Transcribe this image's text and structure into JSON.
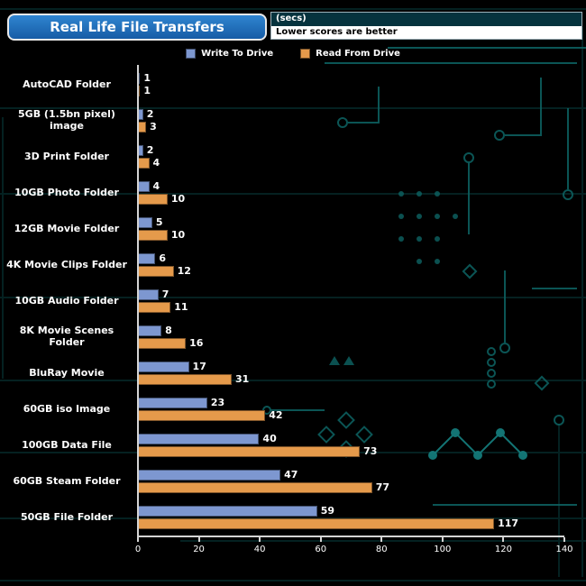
{
  "header": {
    "title": "Real Life File Transfers",
    "units_label": "(secs)",
    "note": "Lower scores are better"
  },
  "chart_data": {
    "type": "bar",
    "orientation": "horizontal",
    "title": "Real Life File Transfers",
    "units": "secs",
    "note": "Lower scores are better",
    "categories": [
      "AutoCAD Folder",
      "5GB (1.5bn pixel) image",
      "3D Print Folder",
      "10GB Photo Folder",
      "12GB Movie Folder",
      "4K Movie Clips Folder",
      "10GB Audio Folder",
      "8K Movie Scenes Folder",
      "BluRay Movie",
      "60GB iso Image",
      "100GB Data File",
      "60GB Steam Folder",
      "50GB File Folder"
    ],
    "series": [
      {
        "name": "Write To  Drive",
        "color": "#7d97d0",
        "values": [
          1,
          2,
          2,
          4,
          5,
          6,
          7,
          8,
          17,
          23,
          40,
          47,
          59
        ]
      },
      {
        "name": "Read From  Drive",
        "color": "#e59a4b",
        "values": [
          1,
          3,
          4,
          10,
          10,
          12,
          11,
          16,
          31,
          42,
          73,
          77,
          117
        ]
      }
    ],
    "xlim": [
      0,
      140
    ],
    "xticks": [
      0,
      20,
      40,
      60,
      80,
      100,
      120,
      140
    ],
    "value_labels": true,
    "legend_position": "top",
    "grid": false,
    "background": "#000000"
  }
}
